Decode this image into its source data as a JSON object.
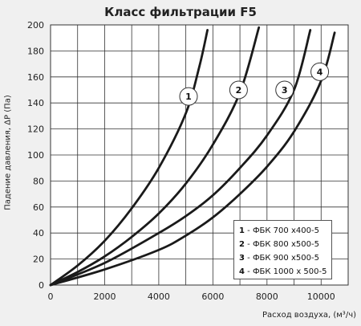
{
  "chart_data": {
    "type": "line",
    "title": "Класс фильтрации F5",
    "ylabel": "Падение давления, ΔP (Па)",
    "xlabel": "Расход воздуха, (м³/ч)",
    "xlim": [
      0,
      11000
    ],
    "ylim": [
      0,
      200
    ],
    "xticks": [
      0,
      2000,
      4000,
      6000,
      8000,
      10000
    ],
    "yticks": [
      0,
      20,
      40,
      60,
      80,
      100,
      120,
      140,
      160,
      180,
      200
    ],
    "grid": true,
    "legend_position": "bottom-right",
    "legend": [
      {
        "num": "1",
        "text": "ФБК 700 х400-5"
      },
      {
        "num": "2",
        "text": "ФБК 800 х500-5"
      },
      {
        "num": "3",
        "text": "ФБК 900 х500-5"
      },
      {
        "num": "4",
        "text": "ФБК 1000 х 500-5"
      }
    ],
    "series": [
      {
        "label_marker": "1",
        "marker_at": [
          5100,
          145
        ],
        "x": [
          0,
          1000,
          2000,
          3000,
          4000,
          5000,
          5500,
          5800
        ],
        "y": [
          0,
          15,
          34,
          59,
          90,
          132,
          168,
          196
        ]
      },
      {
        "label_marker": "2",
        "marker_at": [
          6950,
          150
        ],
        "x": [
          0,
          1000,
          2000,
          3000,
          4000,
          5000,
          6000,
          7000,
          7700
        ],
        "y": [
          0,
          10,
          22,
          37,
          55,
          78,
          108,
          148,
          198
        ]
      },
      {
        "label_marker": "3",
        "marker_at": [
          8650,
          150
        ],
        "x": [
          0,
          2000,
          4000,
          5000,
          6000,
          7000,
          8000,
          9000,
          9600
        ],
        "y": [
          0,
          17,
          40,
          53,
          69,
          90,
          115,
          150,
          196
        ]
      },
      {
        "label_marker": "4",
        "marker_at": [
          9950,
          164
        ],
        "x": [
          0,
          2000,
          4000,
          5000,
          6000,
          7000,
          8000,
          9000,
          10000,
          10500
        ],
        "y": [
          0,
          12,
          27,
          38,
          52,
          70,
          91,
          118,
          157,
          194
        ]
      }
    ]
  }
}
